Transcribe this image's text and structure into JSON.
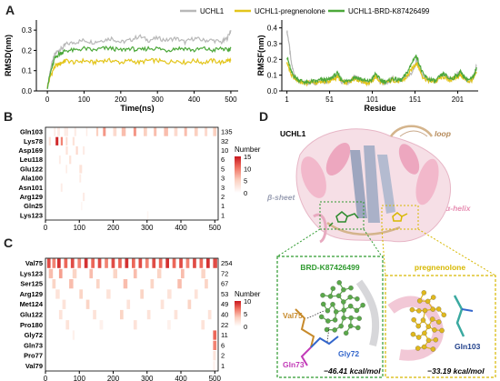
{
  "panels": {
    "a": "A",
    "b": "B",
    "c": "C",
    "d": "D"
  },
  "legend": [
    "UCHL1",
    "UCHL1-pregnenolone",
    "UCHL1-BRD-K87426499"
  ],
  "series_colors": [
    "#b8b8b8",
    "#e3c51b",
    "#4ca83a"
  ],
  "colorbar_label": "Number",
  "chart_data": [
    {
      "type": "line",
      "xlabel": "Time(ns)",
      "ylabel": "RMSD(nm)",
      "xlim": [
        -30,
        520
      ],
      "ylim": [
        0,
        0.35
      ],
      "xticks": [
        "0",
        "100",
        "200",
        "300",
        "400",
        "500"
      ],
      "yticks": [
        "0.0",
        "0.1",
        "0.2",
        "0.3"
      ],
      "x": [
        0,
        10,
        20,
        30,
        40,
        50,
        75,
        100,
        125,
        150,
        175,
        200,
        225,
        250,
        275,
        300,
        325,
        350,
        375,
        400,
        425,
        450,
        475,
        490,
        500
      ],
      "series": [
        {
          "name": "UCHL1",
          "values": [
            0.02,
            0.12,
            0.18,
            0.2,
            0.21,
            0.23,
            0.24,
            0.25,
            0.24,
            0.25,
            0.26,
            0.24,
            0.25,
            0.27,
            0.25,
            0.26,
            0.25,
            0.26,
            0.24,
            0.26,
            0.25,
            0.25,
            0.24,
            0.26,
            0.3
          ]
        },
        {
          "name": "UCHL1-pregnenolone",
          "values": [
            0.02,
            0.08,
            0.12,
            0.13,
            0.14,
            0.15,
            0.14,
            0.15,
            0.14,
            0.15,
            0.15,
            0.14,
            0.15,
            0.14,
            0.15,
            0.15,
            0.14,
            0.15,
            0.14,
            0.15,
            0.14,
            0.15,
            0.14,
            0.15,
            0.15
          ]
        },
        {
          "name": "UCHL1-BRD-K87426499",
          "values": [
            0.02,
            0.1,
            0.16,
            0.18,
            0.19,
            0.2,
            0.2,
            0.21,
            0.2,
            0.21,
            0.21,
            0.2,
            0.21,
            0.2,
            0.21,
            0.21,
            0.2,
            0.21,
            0.21,
            0.2,
            0.21,
            0.2,
            0.21,
            0.2,
            0.21
          ]
        }
      ]
    },
    {
      "type": "line",
      "xlabel": "Residue",
      "ylabel": "RMSF(nm)",
      "xlim": [
        -5,
        225
      ],
      "ylim": [
        0,
        0.45
      ],
      "xticks": [
        "1",
        "51",
        "101",
        "151",
        "201"
      ],
      "yticks": [
        "0.0",
        "0.1",
        "0.2",
        "0.3",
        "0.4"
      ],
      "x": [
        1,
        3,
        6,
        10,
        15,
        20,
        25,
        30,
        35,
        40,
        45,
        50,
        55,
        60,
        65,
        70,
        75,
        80,
        85,
        90,
        95,
        100,
        105,
        110,
        115,
        120,
        125,
        130,
        135,
        140,
        145,
        150,
        153,
        156,
        160,
        165,
        170,
        175,
        180,
        185,
        190,
        195,
        200,
        205,
        210,
        215,
        220,
        223
      ],
      "series": [
        {
          "name": "UCHL1",
          "values": [
            0.38,
            0.32,
            0.18,
            0.09,
            0.06,
            0.05,
            0.05,
            0.06,
            0.05,
            0.07,
            0.06,
            0.06,
            0.08,
            0.1,
            0.06,
            0.05,
            0.06,
            0.09,
            0.08,
            0.06,
            0.05,
            0.06,
            0.1,
            0.06,
            0.05,
            0.06,
            0.08,
            0.06,
            0.07,
            0.09,
            0.1,
            0.14,
            0.2,
            0.15,
            0.1,
            0.08,
            0.07,
            0.06,
            0.09,
            0.1,
            0.08,
            0.07,
            0.1,
            0.12,
            0.07,
            0.06,
            0.09,
            0.16
          ]
        },
        {
          "name": "UCHL1-pregnenolone",
          "values": [
            0.18,
            0.15,
            0.1,
            0.08,
            0.06,
            0.05,
            0.05,
            0.06,
            0.05,
            0.06,
            0.06,
            0.06,
            0.07,
            0.09,
            0.06,
            0.05,
            0.06,
            0.08,
            0.07,
            0.06,
            0.05,
            0.06,
            0.09,
            0.06,
            0.05,
            0.06,
            0.07,
            0.06,
            0.06,
            0.08,
            0.12,
            0.16,
            0.18,
            0.14,
            0.09,
            0.07,
            0.06,
            0.06,
            0.08,
            0.09,
            0.07,
            0.07,
            0.09,
            0.1,
            0.07,
            0.06,
            0.08,
            0.12
          ]
        },
        {
          "name": "UCHL1-BRD-K87426499",
          "values": [
            0.22,
            0.18,
            0.12,
            0.09,
            0.07,
            0.06,
            0.05,
            0.06,
            0.06,
            0.07,
            0.07,
            0.07,
            0.09,
            0.11,
            0.07,
            0.06,
            0.07,
            0.09,
            0.08,
            0.07,
            0.06,
            0.07,
            0.11,
            0.07,
            0.06,
            0.06,
            0.08,
            0.07,
            0.07,
            0.1,
            0.15,
            0.21,
            0.22,
            0.17,
            0.11,
            0.08,
            0.07,
            0.06,
            0.09,
            0.11,
            0.08,
            0.08,
            0.1,
            0.12,
            0.08,
            0.07,
            0.09,
            0.15
          ]
        }
      ]
    },
    {
      "type": "heatmap",
      "rows": [
        "Gln103",
        "Lys78",
        "Asp169",
        "Leu118",
        "Glu122",
        "Ala100",
        "Asn101",
        "Arg129",
        "Gln25",
        "Lys123"
      ],
      "counts": [
        "135",
        "32",
        "10",
        "6",
        "5",
        "3",
        "3",
        "2",
        "1",
        "1"
      ],
      "xticks": [
        "0",
        "100",
        "200",
        "300",
        "400",
        "500"
      ],
      "xlim": [
        0,
        510
      ],
      "colorbar_ticks": [
        "15",
        "10",
        "5",
        "0"
      ],
      "colorbar_max": 15,
      "cells": [
        [
          0,
          25,
          5,
          2
        ],
        [
          0,
          35,
          8,
          2
        ],
        [
          0,
          55,
          12,
          2
        ],
        [
          0,
          85,
          6,
          2
        ],
        [
          0,
          120,
          4,
          2
        ],
        [
          0,
          150,
          6,
          5
        ],
        [
          0,
          170,
          8,
          8
        ],
        [
          0,
          200,
          10,
          4
        ],
        [
          0,
          225,
          12,
          6
        ],
        [
          0,
          260,
          8,
          8
        ],
        [
          0,
          290,
          10,
          5
        ],
        [
          0,
          320,
          8,
          6
        ],
        [
          0,
          350,
          12,
          6
        ],
        [
          0,
          380,
          10,
          4
        ],
        [
          0,
          410,
          8,
          6
        ],
        [
          0,
          440,
          10,
          5
        ],
        [
          0,
          470,
          8,
          4
        ],
        [
          0,
          495,
          10,
          5
        ],
        [
          1,
          10,
          6,
          3
        ],
        [
          1,
          30,
          8,
          14
        ],
        [
          1,
          45,
          6,
          9
        ],
        [
          1,
          60,
          5,
          4
        ],
        [
          1,
          80,
          6,
          3
        ],
        [
          2,
          60,
          6,
          3
        ],
        [
          2,
          90,
          6,
          4
        ],
        [
          2,
          110,
          6,
          2
        ],
        [
          3,
          40,
          5,
          2
        ],
        [
          3,
          70,
          6,
          3
        ],
        [
          4,
          100,
          8,
          3
        ],
        [
          4,
          60,
          4,
          2
        ],
        [
          5,
          100,
          5,
          2
        ],
        [
          6,
          45,
          5,
          2
        ],
        [
          7,
          110,
          6,
          2
        ],
        [
          8,
          105,
          4,
          1
        ],
        [
          9,
          300,
          4,
          1
        ]
      ]
    },
    {
      "type": "heatmap",
      "rows": [
        "Val75",
        "Lys123",
        "Ser125",
        "Arg129",
        "Met124",
        "Glu122",
        "Pro180",
        "Gly72",
        "Gln73",
        "Pro77",
        "Val79"
      ],
      "counts": [
        "254",
        "72",
        "67",
        "53",
        "49",
        "40",
        "22",
        "11",
        "6",
        "2",
        "1"
      ],
      "xticks": [
        "0",
        "100",
        "200",
        "300",
        "400",
        "500"
      ],
      "xlim": [
        0,
        510
      ],
      "colorbar_ticks": [
        "10",
        "5",
        "0"
      ],
      "colorbar_max": 10,
      "cells": [
        [
          0,
          5,
          10,
          8
        ],
        [
          0,
          20,
          10,
          6
        ],
        [
          0,
          35,
          10,
          9
        ],
        [
          0,
          55,
          10,
          7
        ],
        [
          0,
          75,
          10,
          8
        ],
        [
          0,
          95,
          10,
          6
        ],
        [
          0,
          115,
          10,
          9
        ],
        [
          0,
          135,
          10,
          7
        ],
        [
          0,
          155,
          10,
          8
        ],
        [
          0,
          175,
          10,
          6
        ],
        [
          0,
          195,
          10,
          8
        ],
        [
          0,
          215,
          10,
          7
        ],
        [
          0,
          235,
          10,
          9
        ],
        [
          0,
          255,
          10,
          7
        ],
        [
          0,
          275,
          10,
          8
        ],
        [
          0,
          295,
          10,
          6
        ],
        [
          0,
          315,
          10,
          8
        ],
        [
          0,
          335,
          10,
          7
        ],
        [
          0,
          355,
          10,
          9
        ],
        [
          0,
          375,
          10,
          7
        ],
        [
          0,
          395,
          10,
          8
        ],
        [
          0,
          415,
          10,
          6
        ],
        [
          0,
          435,
          10,
          8
        ],
        [
          0,
          455,
          10,
          7
        ],
        [
          0,
          475,
          10,
          9
        ],
        [
          0,
          495,
          12,
          8
        ],
        [
          1,
          10,
          12,
          4
        ],
        [
          1,
          40,
          10,
          5
        ],
        [
          1,
          80,
          12,
          3
        ],
        [
          1,
          130,
          10,
          4
        ],
        [
          1,
          200,
          12,
          3
        ],
        [
          1,
          260,
          10,
          4
        ],
        [
          1,
          330,
          12,
          3
        ],
        [
          1,
          400,
          10,
          4
        ],
        [
          1,
          460,
          12,
          3
        ],
        [
          2,
          20,
          10,
          3
        ],
        [
          2,
          70,
          12,
          4
        ],
        [
          2,
          150,
          10,
          3
        ],
        [
          2,
          230,
          12,
          4
        ],
        [
          2,
          310,
          10,
          3
        ],
        [
          2,
          390,
          12,
          4
        ],
        [
          2,
          470,
          10,
          3
        ],
        [
          3,
          30,
          12,
          2
        ],
        [
          3,
          100,
          10,
          3
        ],
        [
          3,
          180,
          12,
          2
        ],
        [
          3,
          280,
          10,
          3
        ],
        [
          3,
          360,
          12,
          2
        ],
        [
          3,
          440,
          10,
          2
        ],
        [
          4,
          50,
          10,
          2
        ],
        [
          4,
          120,
          10,
          3
        ],
        [
          4,
          240,
          10,
          2
        ],
        [
          4,
          340,
          10,
          2
        ],
        [
          4,
          420,
          10,
          3
        ],
        [
          5,
          40,
          10,
          2
        ],
        [
          5,
          140,
          10,
          2
        ],
        [
          5,
          220,
          10,
          3
        ],
        [
          5,
          300,
          10,
          2
        ],
        [
          5,
          380,
          10,
          2
        ],
        [
          5,
          480,
          10,
          2
        ],
        [
          6,
          60,
          10,
          2
        ],
        [
          6,
          160,
          10,
          1
        ],
        [
          6,
          260,
          10,
          2
        ],
        [
          6,
          360,
          10,
          1
        ],
        [
          6,
          460,
          10,
          2
        ],
        [
          7,
          495,
          10,
          7
        ],
        [
          7,
          80,
          6,
          1
        ],
        [
          8,
          495,
          10,
          6
        ],
        [
          9,
          495,
          8,
          2
        ],
        [
          10,
          495,
          6,
          1
        ]
      ]
    }
  ],
  "molecule": {
    "protein": "UCHL1",
    "loop": "loop",
    "beta_sheet": "β-sheet",
    "alpha_helix": "α-helix",
    "ligand1": "BRD-K87426499",
    "ligand2": "pregnenolone",
    "res1": "Val75",
    "res2": "Gly72",
    "res3": "Gln73",
    "res4": "Gln103",
    "energy1": "−46.41 kcal/mol",
    "energy2": "−33.19 kcal/mol"
  }
}
